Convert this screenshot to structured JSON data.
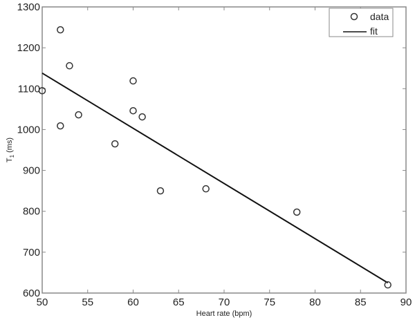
{
  "chart_data": {
    "type": "scatter",
    "title": "",
    "xlabel": "Heart rate (bpm)",
    "ylabel": "T1 (ms)",
    "ylabel_main": "T",
    "ylabel_sub": "1",
    "ylabel_unit": "(ms)",
    "xlim": [
      50,
      90
    ],
    "ylim": [
      600,
      1300
    ],
    "xticks": [
      50,
      55,
      60,
      65,
      70,
      75,
      80,
      85,
      90
    ],
    "yticks": [
      600,
      700,
      800,
      900,
      1000,
      1100,
      1200,
      1300
    ],
    "grid": false,
    "legend_position": "top-right",
    "series": [
      {
        "name": "data",
        "kind": "scatter",
        "marker": "open-circle",
        "points": [
          {
            "x": 50,
            "y": 1095
          },
          {
            "x": 52,
            "y": 1244
          },
          {
            "x": 53,
            "y": 1156
          },
          {
            "x": 52,
            "y": 1009
          },
          {
            "x": 54,
            "y": 1036
          },
          {
            "x": 58,
            "y": 965
          },
          {
            "x": 60,
            "y": 1119
          },
          {
            "x": 60,
            "y": 1046
          },
          {
            "x": 61,
            "y": 1031
          },
          {
            "x": 63,
            "y": 850
          },
          {
            "x": 68,
            "y": 855
          },
          {
            "x": 78,
            "y": 798
          },
          {
            "x": 88,
            "y": 620
          }
        ]
      },
      {
        "name": "fit",
        "kind": "line",
        "points": [
          {
            "x": 50,
            "y": 1138
          },
          {
            "x": 88,
            "y": 625
          }
        ]
      }
    ]
  },
  "legend": {
    "items": [
      {
        "label": "data"
      },
      {
        "label": "fit"
      }
    ]
  },
  "colors": {
    "axis": "#888888",
    "marker": "#333333",
    "line": "#111111"
  }
}
